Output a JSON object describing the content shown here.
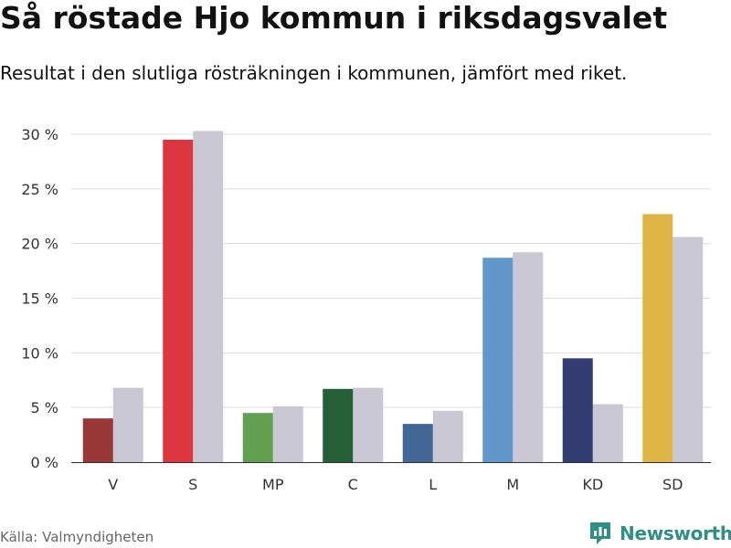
{
  "header": {
    "title": "Så röstade Hjo kommun i riksdagsvalet",
    "subtitle": "Resultat i den slutliga rösträkningen i kommunen, jämfört med riket."
  },
  "footer": {
    "source": "Källa: Valmyndigheten",
    "brand": "Newsworthy",
    "brand_icon": "bar-chart-logo-icon",
    "brand_color": "#2f8f86"
  },
  "chart_data": {
    "type": "bar",
    "categories": [
      "V",
      "S",
      "MP",
      "C",
      "L",
      "M",
      "KD",
      "SD"
    ],
    "series": [
      {
        "values": [
          4.0,
          29.5,
          4.5,
          6.7,
          3.5,
          18.7,
          9.5,
          22.7
        ],
        "colors": [
          "#993838",
          "#dc363f",
          "#639f50",
          "#255f36",
          "#426796",
          "#6198c9",
          "#313c70",
          "#deb445"
        ]
      },
      {
        "values": [
          6.8,
          30.3,
          5.1,
          6.8,
          4.7,
          19.2,
          5.3,
          20.6
        ],
        "color": "#c8c7d3"
      }
    ],
    "yticks": [
      0,
      5,
      10,
      15,
      20,
      25,
      30
    ],
    "ytick_labels": [
      "0 %",
      "5 %",
      "10 %",
      "15 %",
      "20 %",
      "25 %",
      "30 %"
    ],
    "ylim": [
      0,
      30
    ],
    "grid": true,
    "xlabel": "",
    "ylabel": ""
  }
}
